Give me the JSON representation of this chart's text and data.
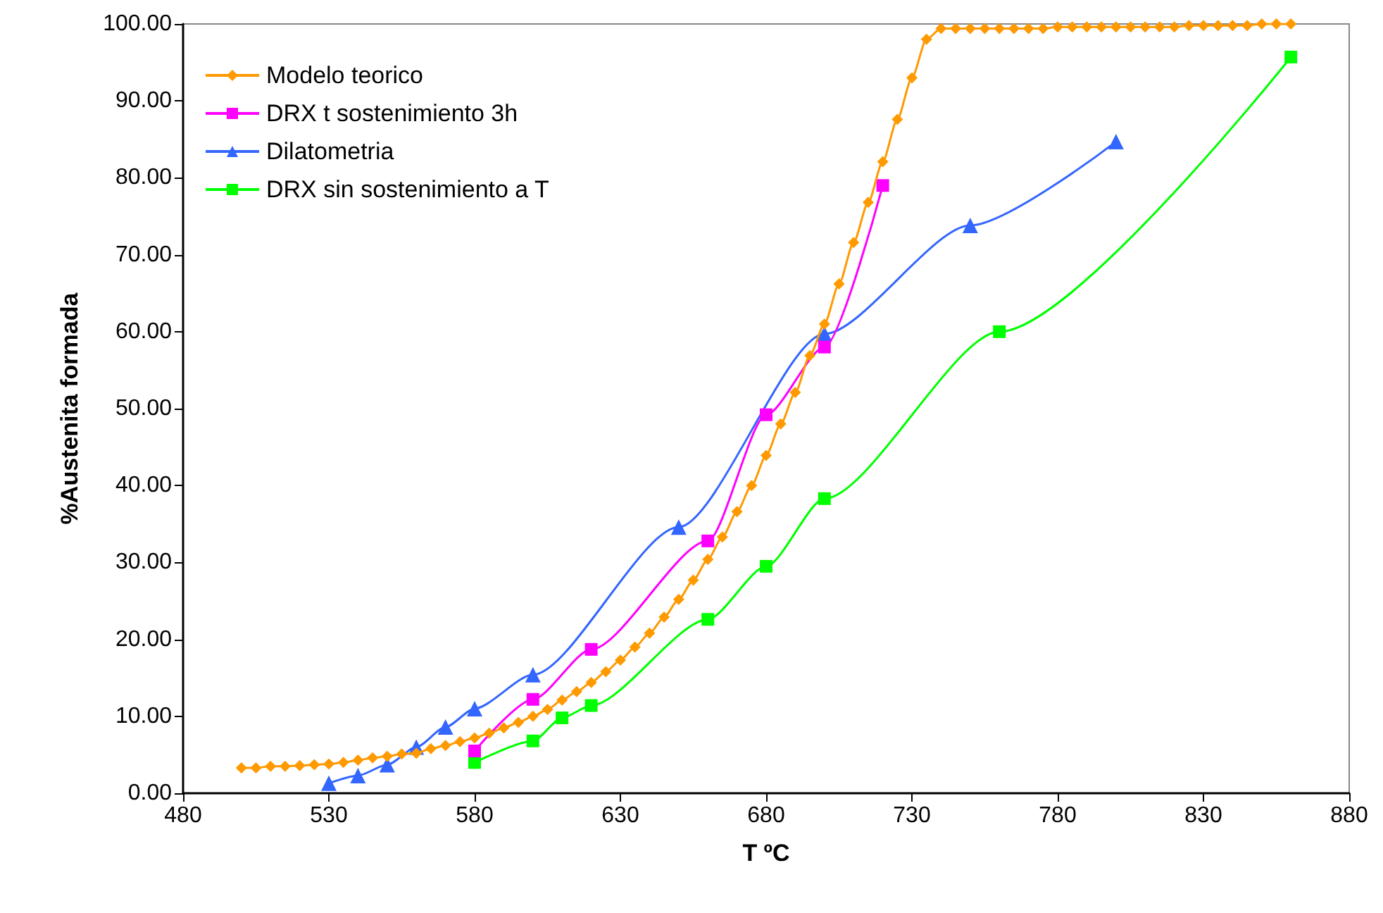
{
  "chart_data": {
    "type": "line",
    "xlabel": "T ºC",
    "ylabel": "%Austenita formada",
    "xlim": [
      480,
      880
    ],
    "xticks": [
      480,
      530,
      580,
      630,
      680,
      730,
      780,
      830,
      880
    ],
    "ylim": [
      0,
      100
    ],
    "yticks": [
      {
        "value": 0,
        "label": "0.00"
      },
      {
        "value": 10,
        "label": "10.00"
      },
      {
        "value": 20,
        "label": "20.00"
      },
      {
        "value": 30,
        "label": "30.00"
      },
      {
        "value": 40,
        "label": "40.00"
      },
      {
        "value": 50,
        "label": "50.00"
      },
      {
        "value": 60,
        "label": "60.00"
      },
      {
        "value": 70,
        "label": "70.00"
      },
      {
        "value": 80,
        "label": "80.00"
      },
      {
        "value": 90,
        "label": "90.00"
      },
      {
        "value": 100,
        "label": "100.00"
      }
    ],
    "grid": false,
    "legend": "top left",
    "line_style": "solid",
    "series": [
      {
        "name": "Modelo teorico",
        "color": "#ff9900",
        "marker": "diamond",
        "x": [
          500,
          505,
          510,
          515,
          520,
          525,
          530,
          535,
          540,
          545,
          550,
          555,
          560,
          565,
          570,
          575,
          580,
          585,
          590,
          595,
          600,
          605,
          610,
          615,
          620,
          625,
          630,
          635,
          640,
          645,
          650,
          655,
          660,
          665,
          670,
          675,
          680,
          685,
          690,
          695,
          700,
          705,
          710,
          715,
          720,
          725,
          730,
          735,
          740,
          745,
          750,
          755,
          760,
          765,
          770,
          775,
          780,
          785,
          790,
          795,
          800,
          805,
          810,
          815,
          820,
          825,
          830,
          835,
          840,
          845,
          850,
          855,
          860
        ],
        "values": [
          3.3,
          3.3,
          3.5,
          3.5,
          3.6,
          3.7,
          3.8,
          4.0,
          4.3,
          4.6,
          4.8,
          5.1,
          5.2,
          5.8,
          6.2,
          6.7,
          7.2,
          7.8,
          8.5,
          9.2,
          10.0,
          10.9,
          12.1,
          13.2,
          14.4,
          15.8,
          17.3,
          19.0,
          20.8,
          22.9,
          25.2,
          27.7,
          30.4,
          33.3,
          36.6,
          40.0,
          43.9,
          48.0,
          52.1,
          56.9,
          61.0,
          66.2,
          71.6,
          76.8,
          82.1,
          87.6,
          93.0,
          98.0,
          99.4,
          99.4,
          99.4,
          99.4,
          99.4,
          99.4,
          99.4,
          99.4,
          99.6,
          99.6,
          99.6,
          99.6,
          99.6,
          99.6,
          99.6,
          99.6,
          99.6,
          99.8,
          99.8,
          99.8,
          99.8,
          99.8,
          100.0,
          100.0,
          100.0
        ]
      },
      {
        "name": "DRX t sostenimiento 3h",
        "color": "#ff00ff",
        "marker": "square",
        "x": [
          580,
          600,
          620,
          660,
          680,
          700,
          720
        ],
        "values": [
          5.5,
          12.2,
          18.7,
          32.8,
          49.2,
          58.0,
          79.0
        ]
      },
      {
        "name": "Dilatometria",
        "color": "#3366ff",
        "marker": "triangle",
        "x": [
          530,
          540,
          550,
          560,
          570,
          580,
          600,
          650,
          700,
          750,
          800
        ],
        "values": [
          1.3,
          2.3,
          3.7,
          6.0,
          8.6,
          11.0,
          15.4,
          34.6,
          59.7,
          73.8,
          84.7
        ]
      },
      {
        "name": "DRX sin sostenimiento a T",
        "color": "#00ff00",
        "marker": "square",
        "x": [
          580,
          600,
          610,
          620,
          660,
          680,
          700,
          760,
          860
        ],
        "values": [
          4.0,
          6.8,
          9.8,
          11.4,
          22.6,
          29.5,
          38.3,
          60.0,
          95.7
        ]
      }
    ]
  }
}
